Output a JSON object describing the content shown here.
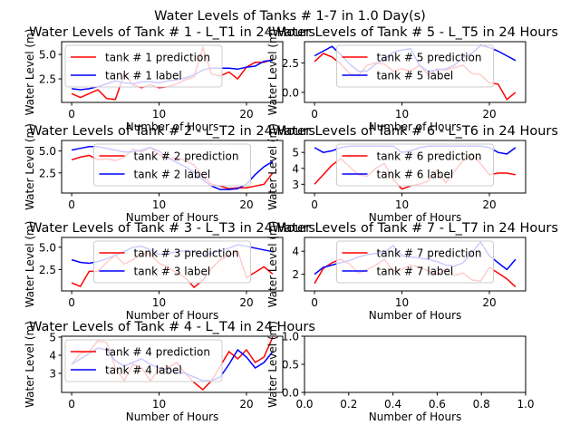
{
  "figure": {
    "suptitle": "Water Levels of Tanks # 1-7 in 1.0 Day(s)"
  },
  "colors": {
    "prediction": "#ff0000",
    "label": "#0000ff"
  },
  "chart_data": [
    {
      "type": "line",
      "title": "Water Levels of Tank # 1 - L_T1 in 24 Hours",
      "xlabel": "Number of Hours",
      "ylabel": "Water Level (m)",
      "xlim": [
        -1.15,
        24.15
      ],
      "ylim": [
        0.1,
        6.3
      ],
      "xticks": [
        0,
        10,
        20
      ],
      "xtick_labels": [
        "0",
        "10",
        "20"
      ],
      "yticks": [
        2.5,
        5.0
      ],
      "ytick_labels": [
        "2.5",
        "5.0"
      ],
      "x": [
        0,
        1,
        2,
        3,
        4,
        5,
        6,
        7,
        8,
        9,
        10,
        11,
        12,
        13,
        14,
        15,
        16,
        17,
        18,
        19,
        20,
        21,
        22,
        23
      ],
      "series": [
        {
          "name": "tank # 1 prediction",
          "role": "prediction",
          "values": [
            1.0,
            0.6,
            1.0,
            1.4,
            0.5,
            0.4,
            3.0,
            1.9,
            1.6,
            1.9,
            1.6,
            1.7,
            2.0,
            2.4,
            2.7,
            5.7,
            3.0,
            2.8,
            3.2,
            2.5,
            3.7,
            4.2,
            4.2,
            4.5
          ]
        },
        {
          "name": "tank # 1 label",
          "role": "label",
          "values": [
            1.5,
            1.4,
            1.5,
            1.7,
            2.0,
            2.3,
            2.1,
            2.0,
            2.2,
            2.2,
            2.1,
            2.3,
            2.4,
            2.6,
            2.9,
            3.4,
            3.6,
            3.6,
            3.6,
            3.5,
            3.7,
            3.8,
            4.3,
            4.4
          ]
        }
      ],
      "legend": "upper left"
    },
    {
      "type": "line",
      "title": "Water Levels of Tank # 5 - L_T5 in 24 Hours",
      "xlabel": "Number of Hours",
      "ylabel": "Water Level (m)",
      "xlim": [
        -1.15,
        24.15
      ],
      "ylim": [
        -0.85,
        4.3
      ],
      "xticks": [
        0,
        10,
        20
      ],
      "xtick_labels": [
        "0",
        "10",
        "20"
      ],
      "yticks": [
        0.0,
        2.5
      ],
      "ytick_labels": [
        "0.0",
        "2.5"
      ],
      "x": [
        0,
        1,
        2,
        3,
        4,
        5,
        6,
        7,
        8,
        9,
        10,
        11,
        12,
        13,
        14,
        15,
        16,
        17,
        18,
        19,
        20,
        21,
        22,
        23
      ],
      "series": [
        {
          "name": "tank # 5 prediction",
          "role": "prediction",
          "values": [
            2.6,
            3.3,
            3.0,
            2.4,
            1.6,
            1.4,
            2.3,
            2.5,
            2.4,
            1.8,
            2.0,
            1.8,
            2.3,
            1.5,
            2.0,
            1.9,
            2.1,
            2.3,
            1.6,
            1.5,
            0.8,
            0.7,
            -0.6,
            0.0
          ]
        },
        {
          "name": "tank # 5 label",
          "role": "label",
          "values": [
            3.1,
            3.5,
            3.9,
            3.2,
            2.4,
            1.8,
            1.8,
            2.4,
            2.8,
            3.4,
            3.6,
            3.7,
            2.3,
            1.8,
            1.9,
            2.0,
            2.3,
            3.0,
            3.3,
            4.0,
            3.8,
            3.5,
            3.1,
            2.7
          ]
        }
      ],
      "legend": "upper center"
    },
    {
      "type": "line",
      "title": "Water Levels of Tank # 2 - L_T2 in 24 Hours",
      "xlabel": "Number of Hours",
      "ylabel": "Water Level (m)",
      "xlim": [
        -1.15,
        24.15
      ],
      "ylim": [
        0.2,
        6.2
      ],
      "xticks": [
        0,
        10,
        20
      ],
      "xtick_labels": [
        "0",
        "10",
        "20"
      ],
      "yticks": [
        2.5,
        5.0
      ],
      "ytick_labels": [
        "2.5",
        "5.0"
      ],
      "x": [
        0,
        1,
        2,
        3,
        4,
        5,
        6,
        7,
        8,
        9,
        10,
        11,
        12,
        13,
        14,
        15,
        16,
        17,
        18,
        19,
        20,
        21,
        22,
        23
      ],
      "series": [
        {
          "name": "tank # 2 prediction",
          "role": "prediction",
          "values": [
            4.0,
            4.3,
            4.5,
            4.0,
            4.1,
            3.9,
            4.3,
            5.2,
            4.9,
            5.4,
            4.6,
            4.1,
            4.2,
            3.9,
            3.4,
            2.1,
            1.2,
            1.0,
            0.7,
            0.8,
            0.8,
            1.0,
            1.2,
            2.5
          ]
        },
        {
          "name": "tank # 2 label",
          "role": "label",
          "values": [
            5.1,
            5.3,
            5.5,
            5.5,
            5.3,
            5.1,
            4.9,
            4.9,
            5.1,
            5.4,
            5.0,
            4.2,
            3.7,
            3.2,
            2.6,
            1.7,
            1.0,
            0.6,
            0.6,
            0.7,
            1.2,
            2.3,
            3.2,
            3.8
          ]
        }
      ],
      "legend": "upper center"
    },
    {
      "type": "line",
      "title": "Water Levels of Tank # 6 - L_T6 in 24 Hours",
      "xlabel": "Number of Hours",
      "ylabel": "Water Level (m)",
      "xlim": [
        -1.15,
        24.15
      ],
      "ylim": [
        2.45,
        5.75
      ],
      "xticks": [
        0,
        10,
        20
      ],
      "xtick_labels": [
        "0",
        "10",
        "20"
      ],
      "yticks": [
        3,
        4,
        5
      ],
      "ytick_labels": [
        "3",
        "4",
        "5"
      ],
      "x": [
        0,
        1,
        2,
        3,
        4,
        5,
        6,
        7,
        8,
        9,
        10,
        11,
        12,
        13,
        14,
        15,
        16,
        17,
        18,
        19,
        20,
        21,
        22,
        23
      ],
      "series": [
        {
          "name": "tank # 6 prediction",
          "role": "prediction",
          "values": [
            3.0,
            3.6,
            4.2,
            4.6,
            4.1,
            3.6,
            3.5,
            4.0,
            4.3,
            3.3,
            2.7,
            2.9,
            3.0,
            3.2,
            3.9,
            3.1,
            3.8,
            4.5,
            4.9,
            4.3,
            3.6,
            3.7,
            3.7,
            3.6
          ]
        },
        {
          "name": "tank # 6 label",
          "role": "label",
          "values": [
            5.3,
            5.0,
            5.1,
            5.3,
            5.4,
            5.4,
            5.4,
            5.4,
            5.4,
            5.4,
            5.0,
            5.1,
            5.3,
            5.4,
            5.4,
            5.4,
            5.4,
            5.4,
            5.4,
            5.4,
            5.3,
            5.0,
            4.9,
            5.3
          ]
        }
      ],
      "legend": "upper center"
    },
    {
      "type": "line",
      "title": "Water Levels of Tank # 3 - L_T3 in 24 Hours",
      "xlabel": "Number of Hours",
      "ylabel": "Water Level (m)",
      "xlim": [
        -1.15,
        24.15
      ],
      "ylim": [
        0.1,
        6.1
      ],
      "xticks": [
        0,
        10,
        20
      ],
      "xtick_labels": [
        "0",
        "10",
        "20"
      ],
      "yticks": [
        2.5,
        5.0
      ],
      "ytick_labels": [
        "2.5",
        "5.0"
      ],
      "x": [
        0,
        1,
        2,
        3,
        4,
        5,
        6,
        7,
        8,
        9,
        10,
        11,
        12,
        13,
        14,
        15,
        16,
        17,
        18,
        19,
        20,
        21,
        22,
        23
      ],
      "series": [
        {
          "name": "tank # 3 prediction",
          "role": "prediction",
          "values": [
            1.0,
            0.6,
            2.3,
            2.3,
            3.3,
            4.1,
            3.1,
            3.6,
            4.3,
            4.3,
            3.2,
            2.8,
            2.1,
            1.6,
            0.5,
            1.3,
            2.6,
            3.6,
            4.1,
            4.6,
            1.6,
            2.2,
            2.8,
            2.0
          ]
        },
        {
          "name": "tank # 3 label",
          "role": "label",
          "values": [
            3.6,
            3.3,
            3.2,
            3.4,
            3.7,
            4.1,
            4.5,
            5.0,
            5.1,
            4.7,
            4.2,
            4.3,
            4.5,
            4.6,
            4.5,
            4.2,
            4.3,
            4.6,
            4.9,
            5.3,
            5.1,
            4.9,
            4.7,
            4.5
          ]
        }
      ],
      "legend": "upper center"
    },
    {
      "type": "line",
      "title": "Water Levels of Tank # 7 - L_T7 in 24 Hours",
      "xlabel": "Number of Hours",
      "ylabel": "Water Level (m)",
      "xlim": [
        -1.15,
        24.15
      ],
      "ylim": [
        0.55,
        5.2
      ],
      "xticks": [
        0,
        10,
        20
      ],
      "xtick_labels": [
        "0",
        "10",
        "20"
      ],
      "yticks": [
        2,
        4
      ],
      "ytick_labels": [
        "2",
        "4"
      ],
      "x": [
        0,
        1,
        2,
        3,
        4,
        5,
        6,
        7,
        8,
        9,
        10,
        11,
        12,
        13,
        14,
        15,
        16,
        17,
        18,
        19,
        20,
        21,
        22,
        23
      ],
      "series": [
        {
          "name": "tank # 7 prediction",
          "role": "prediction",
          "values": [
            1.2,
            2.5,
            3.0,
            3.3,
            2.9,
            2.1,
            2.4,
            2.8,
            3.3,
            2.3,
            2.4,
            2.8,
            2.6,
            2.3,
            2.0,
            2.4,
            1.9,
            2.1,
            1.5,
            1.4,
            2.6,
            2.1,
            1.6,
            0.9
          ]
        },
        {
          "name": "tank # 7 label",
          "role": "label",
          "values": [
            2.0,
            2.6,
            2.8,
            3.0,
            3.2,
            3.5,
            3.7,
            3.8,
            3.9,
            4.5,
            3.6,
            3.5,
            3.4,
            3.3,
            3.1,
            2.8,
            2.7,
            3.0,
            3.9,
            4.8,
            3.6,
            3.0,
            2.4,
            3.3
          ]
        }
      ],
      "legend": "upper center"
    },
    {
      "type": "line",
      "title": "Water Levels of Tank # 4 - L_T4 in 24 Hours",
      "xlabel": "Number of Hours",
      "ylabel": "Water Level (m)",
      "xlim": [
        -1.15,
        24.15
      ],
      "ylim": [
        1.95,
        5.05
      ],
      "xticks": [
        0,
        10,
        20
      ],
      "xtick_labels": [
        "0",
        "10",
        "20"
      ],
      "yticks": [
        3,
        4,
        5
      ],
      "ytick_labels": [
        "3",
        "4",
        "5"
      ],
      "x": [
        0,
        1,
        2,
        3,
        4,
        5,
        6,
        7,
        8,
        9,
        10,
        11,
        12,
        13,
        14,
        15,
        16,
        17,
        18,
        19,
        20,
        21,
        22,
        23
      ],
      "series": [
        {
          "name": "tank # 4 prediction",
          "role": "prediction",
          "values": [
            3.5,
            4.1,
            4.2,
            4.8,
            4.7,
            3.3,
            2.6,
            3.5,
            3.3,
            2.6,
            3.2,
            3.3,
            3.6,
            3.0,
            2.5,
            2.1,
            2.6,
            3.4,
            4.2,
            3.8,
            4.3,
            3.6,
            3.9,
            5.0
          ]
        },
        {
          "name": "tank # 4 label",
          "role": "label",
          "values": [
            3.5,
            3.8,
            4.1,
            4.4,
            4.3,
            3.7,
            3.4,
            3.6,
            3.8,
            3.5,
            3.3,
            3.2,
            3.1,
            3.0,
            2.8,
            2.6,
            2.6,
            2.8,
            3.5,
            4.3,
            3.9,
            3.3,
            3.6,
            4.2
          ]
        }
      ],
      "legend": "upper left"
    },
    {
      "type": "line",
      "title": "",
      "xlabel": "Number of Hours",
      "ylabel": "Water Level (m)",
      "xlim": [
        0,
        1
      ],
      "ylim": [
        0,
        1
      ],
      "xticks": [
        0,
        0.2,
        0.4,
        0.6,
        0.8,
        1.0
      ],
      "xtick_labels": [
        "0.0",
        "0.2",
        "0.4",
        "0.6",
        "0.8",
        "1.0"
      ],
      "yticks": [
        0,
        0.5,
        1.0
      ],
      "ytick_labels": [
        "0.0",
        "0.5",
        "1.0"
      ],
      "x": [],
      "series": [],
      "legend": "none"
    }
  ]
}
